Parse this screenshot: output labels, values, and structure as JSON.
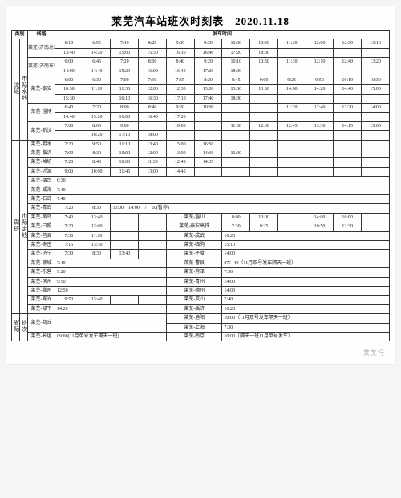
{
  "doc": {
    "title": "莱芜汽车站班次时刻表　2020.11.18",
    "watermark": "莱芜行",
    "hdr": {
      "cat": "类别",
      "route": "线路",
      "dep": "发车时间"
    },
    "cat1": "市际水线",
    "cat1sub": "流班",
    "r1": {
      "name": "莱芜-济南总站",
      "a": [
        "6:10",
        "6:55",
        "7:40",
        "8:20",
        "9:00",
        "9:30",
        "10:00",
        "10:40",
        "11:20",
        "12:00",
        "12:30",
        "13:10"
      ],
      "b": [
        "13:40",
        "14:20",
        "15:00",
        "15:30",
        "16:10",
        "16:40",
        "17:20",
        "18:00",
        "",
        "",
        "",
        ""
      ]
    },
    "r2": {
      "name": "莱芜-济南东站",
      "a": [
        "6:00",
        "6:45",
        "7:20",
        "8:00",
        "8:40",
        "9:20",
        "10:10",
        "10:50",
        "11:30",
        "12:10",
        "12:40",
        "13:20"
      ],
      "b": [
        "14:00",
        "14:40",
        "15:20",
        "16:00",
        "16:40",
        "17:20",
        "18:00",
        "",
        "",
        "",
        "",
        ""
      ]
    },
    "r3": {
      "name": "莱芜-泰安",
      "a": [
        "6:00",
        "6:30",
        "7:00",
        "7:30",
        "7:55",
        "8:20",
        "8:45",
        "9:00",
        "9:25",
        "9:50",
        "10:10",
        "10:30"
      ],
      "b": [
        "10:50",
        "11:10",
        "11:30",
        "12:00",
        "12:30",
        "13:00",
        "13:00",
        "13:30",
        "14:00",
        "14:20",
        "14:40",
        "15:00"
      ],
      "c": [
        "15:30",
        "",
        "16:10",
        "16:30",
        "17:10",
        "17:40",
        "18:00",
        "",
        "",
        "",
        "",
        ""
      ]
    },
    "r4": {
      "name": "莱芜-淄博",
      "a": [
        "6:40",
        "7:20",
        "8:00",
        "8:40",
        "9:20",
        "10:00",
        "",
        "",
        "11:20",
        "12:40",
        "13:20",
        "14:00"
      ],
      "b": [
        "14:40",
        "15:20",
        "16:00",
        "16:40",
        "17:20",
        "",
        "",
        "",
        "",
        "",
        "",
        ""
      ]
    },
    "r5": {
      "name": "莱芜-新汶",
      "a": [
        "7:00",
        "8:00",
        "9:00",
        "",
        "10:00",
        "",
        "11:00",
        "12:00",
        "12:45",
        "13:30",
        "14:15",
        "15:00"
      ],
      "b": [
        "",
        "16:20",
        "17:10",
        "18:00",
        "",
        "",
        "",
        "",
        "",
        "",
        "",
        ""
      ]
    },
    "cat2": "市际定线",
    "cat2sub": "周班",
    "r6": {
      "name": "莱芜-明水",
      "t": [
        "7:20",
        "9:50",
        "11:10",
        "13:40",
        "15:00",
        "16:50",
        "",
        "",
        "",
        "",
        "",
        ""
      ]
    },
    "r7": {
      "name": "莱芜-临沂",
      "t": [
        "7:00",
        "8:30",
        "10:00",
        "12:00",
        "13:00",
        "14:30",
        "16:00",
        "",
        "",
        "",
        "",
        ""
      ]
    },
    "r8": {
      "name": "莱芜-潍坊",
      "t": [
        "7:20",
        "8:40",
        "10:00",
        "11:30",
        "12:45",
        "14:35",
        "",
        "",
        "",
        "",
        "",
        ""
      ]
    },
    "r9": {
      "name": "莱芜-沂源",
      "t": [
        "9:00",
        "10:00",
        "11:45",
        "13:00",
        "14:45",
        "",
        "",
        "",
        "",
        "",
        "",
        ""
      ]
    },
    "r10": {
      "name": "莱芜-烟台",
      "t": "6:30"
    },
    "r11": {
      "name": "莱芜-威海",
      "t": "7:40"
    },
    "r12": {
      "name": "莱芜-石岛",
      "t": "7:40"
    },
    "r13": {
      "name": "莱芜-青岛",
      "t": [
        "7:20",
        "8:30"
      ],
      "note": "13:00　14:00　7：20(暂停)"
    },
    "pair1": {
      "l": "莱芜-黄岛",
      "lt": [
        "7:40",
        "13:40"
      ],
      "r": "莱芜-淄川",
      "rt": [
        "8:00",
        "10:00",
        "14:00",
        "16:00"
      ]
    },
    "pair2": {
      "l": "莱芜-日照",
      "lt": [
        "7:20",
        "13:00"
      ],
      "r": "莱芜-泰安高铁",
      "rt": [
        "7:30",
        "9:25",
        "10:50",
        "12:30"
      ]
    },
    "pair3": {
      "l": "莱芜-莒县",
      "lt": [
        "7:30",
        "11:10"
      ],
      "r": "莱芜-成武",
      "rt": "10:25"
    },
    "pair4": {
      "l": "莱芜-枣庄",
      "lt": [
        "7:15",
        "13:30"
      ],
      "r": "莱芜-临朐",
      "rt": "15:10"
    },
    "pair5": {
      "l": "莱芜-济宁",
      "lt": [
        "7:30",
        "8:30",
        "13:40"
      ],
      "r": "莱芜-平度",
      "rt": "14:00"
    },
    "pair6": {
      "l": "莱芜-聊城",
      "lt": "7:40",
      "r": "莱芜-曹县",
      "rt": "07：40（11月双号发车隔天一班）"
    },
    "pair7": {
      "l": "莱芜-东营",
      "lt": "9:20",
      "r": "莱芜-菏泽",
      "rt": "7:30"
    },
    "pair8": {
      "l": "莱芜-滨州",
      "lt": "9:50",
      "r": "莱芜-青州",
      "rt": "14:00"
    },
    "pair9": {
      "l": "莱芜-滕州",
      "lt": "12:50",
      "r": "莱芜-德州",
      "rt": "14:00"
    },
    "pair10": {
      "l": "莱芜-寿光",
      "lt": [
        "9:50",
        "13:40"
      ],
      "r": "莱芜-岚山",
      "rt": "7:40"
    },
    "pair11": {
      "l": "莱芜-邹平",
      "lt": "14:20",
      "r": "莱芜-禹济",
      "rt": "10:20"
    },
    "cat3": "省际",
    "cat3sub": "班次",
    "prov1": {
      "l": "莱芜-商丘",
      "lt": "",
      "r": "莱芜-洛阳",
      "rt": "10:00（11月双号发车隔天一班）"
    },
    "prov2": {
      "l": "",
      "lt": "",
      "r": "莱芜-上海",
      "rt": "7:30"
    },
    "prov3": {
      "l": "莱芜-长垣",
      "lt": "09:00(11月单号发车隔天一班)",
      "r": "莱芜-南京",
      "rt": "10:00（隔天一班11月单号发车）"
    }
  }
}
